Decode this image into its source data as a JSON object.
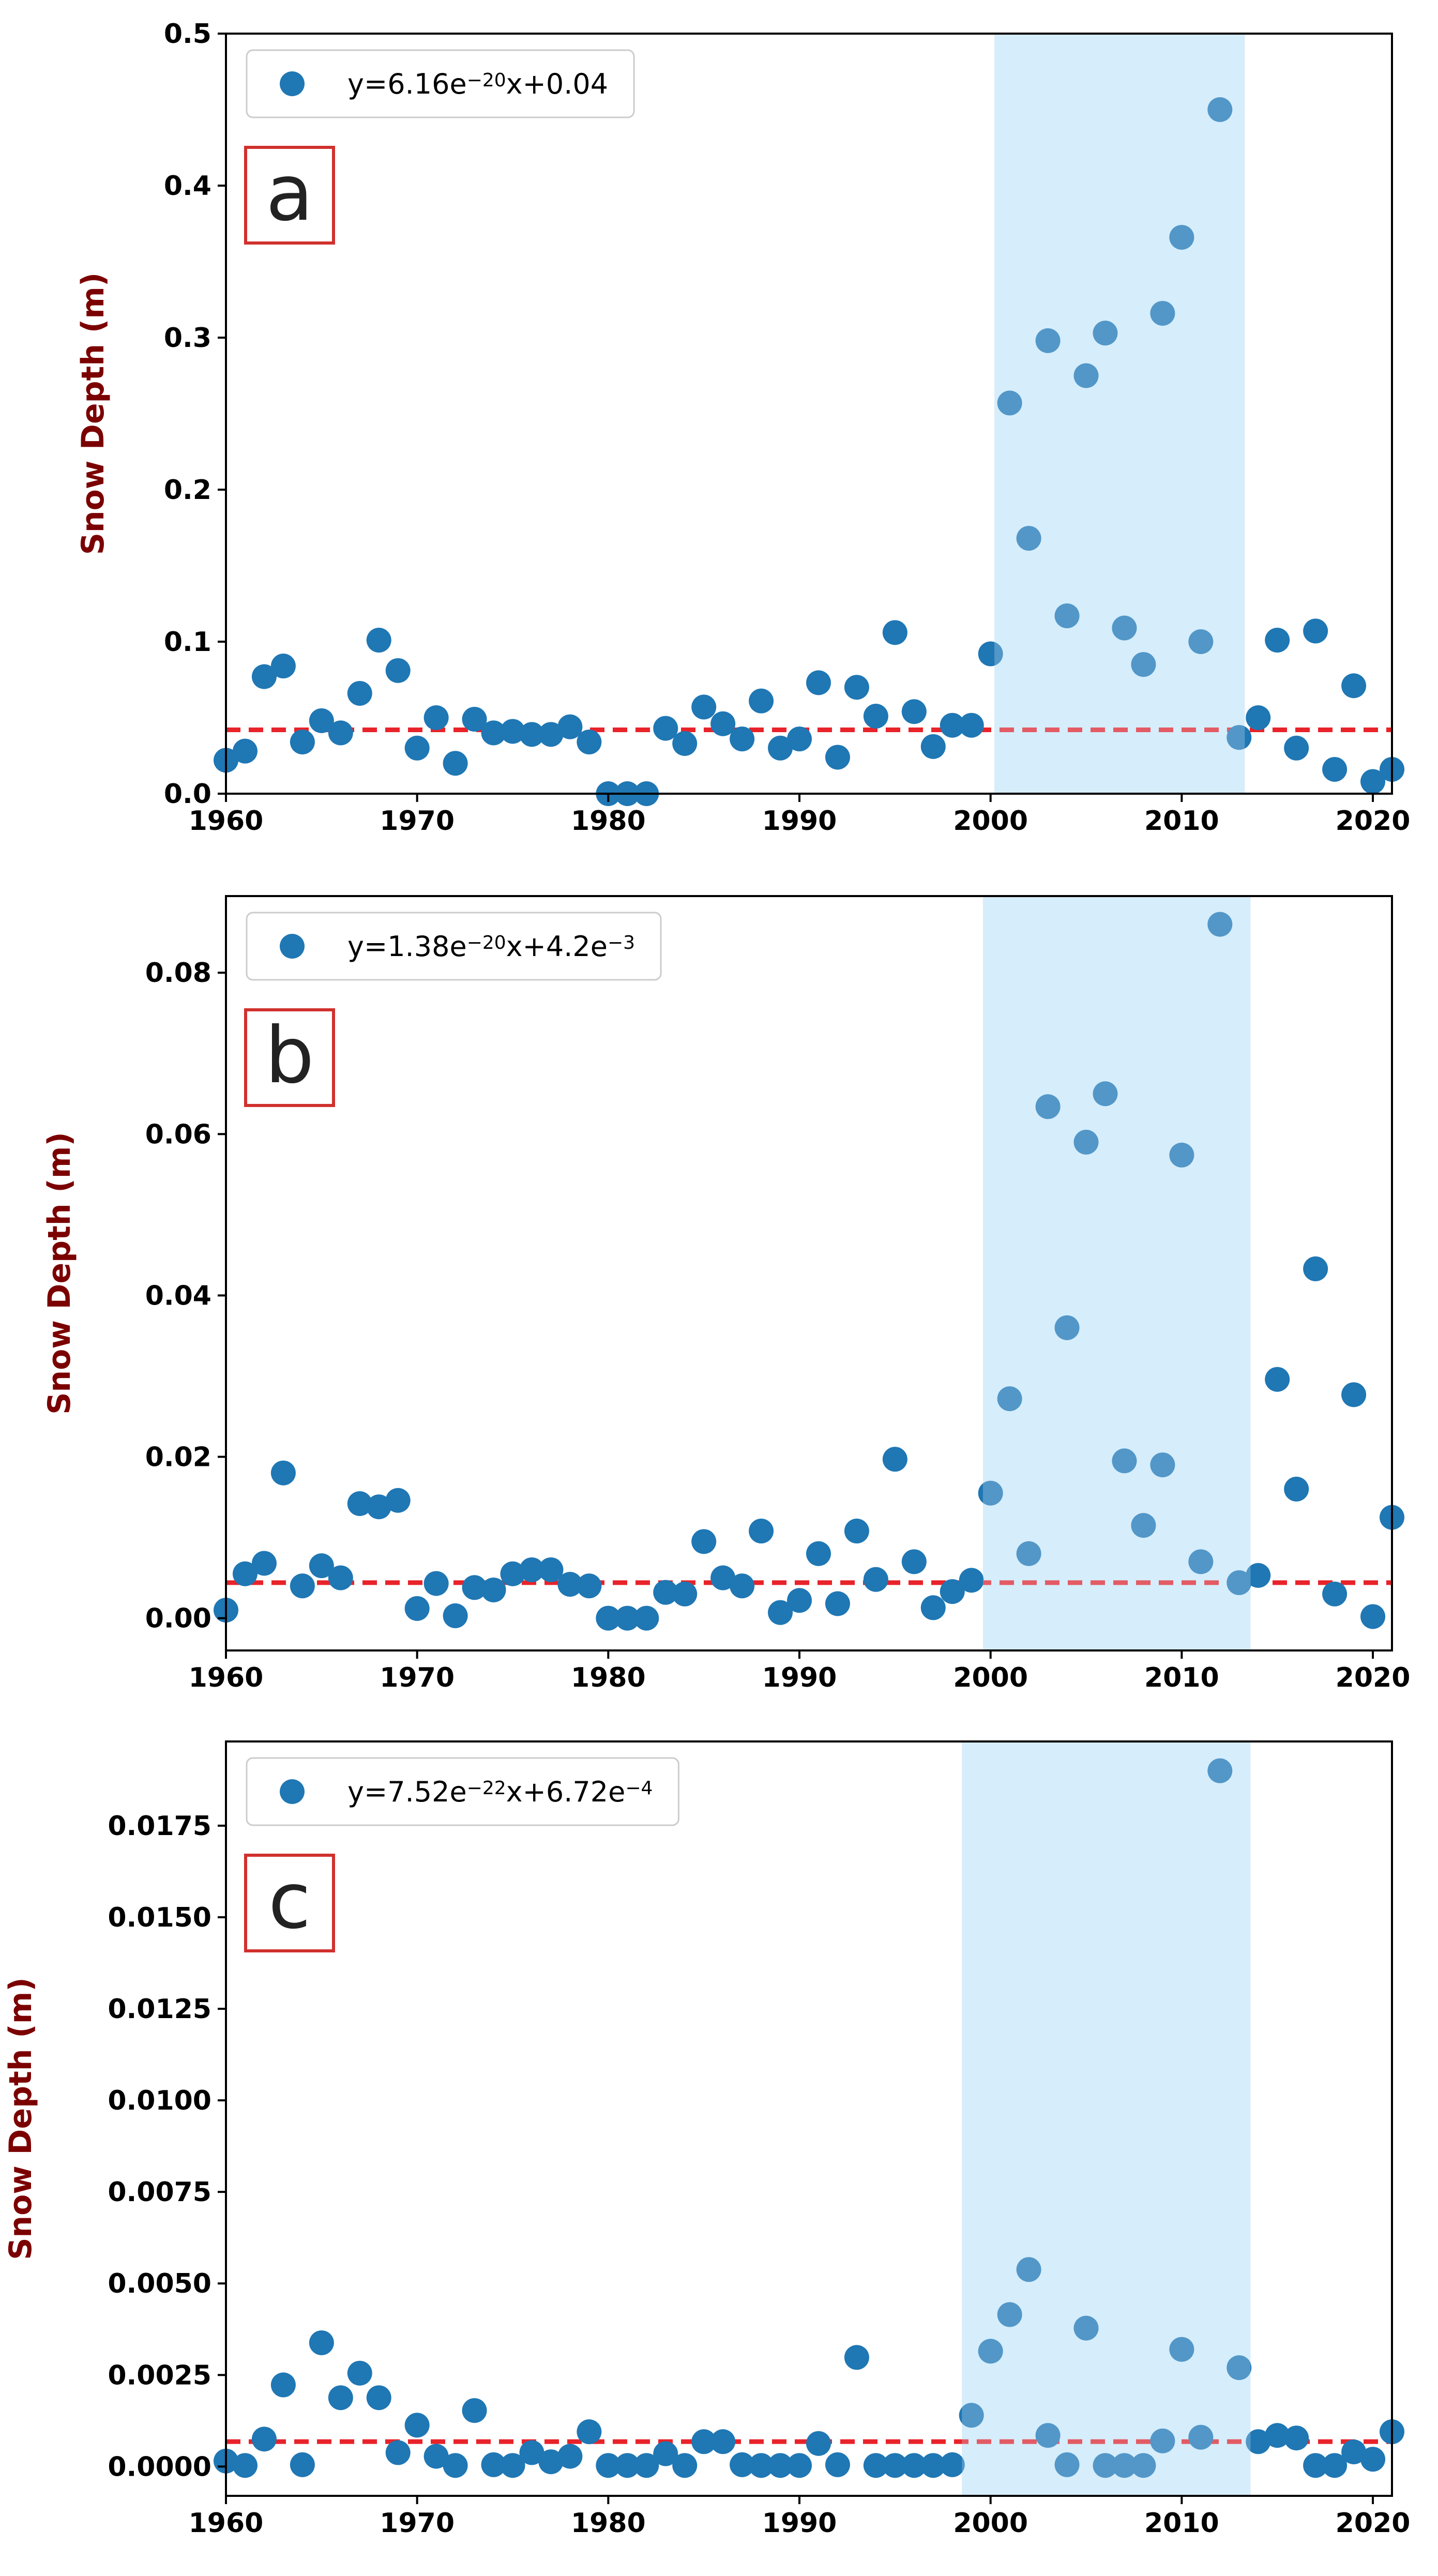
{
  "colors": {
    "marker": "#1f77b4",
    "fitline": "#e8232a",
    "highlight": "#d6edfb",
    "ylabel": "#7b0000",
    "panelbox": "#d0312d"
  },
  "chart_data": [
    {
      "type": "scatter",
      "panel_label": "a",
      "legend": {
        "prefix": "y=6.16e",
        "exp1": "−20",
        "mid": "x+0.04",
        "exp2": "",
        "placement": "top-left"
      },
      "ylabel": "Snow Depth (m)",
      "xlim": [
        1960,
        2021
      ],
      "ylim": [
        0,
        0.5
      ],
      "xticks": [
        1960,
        1970,
        1980,
        1990,
        2000,
        2010,
        2020
      ],
      "xtick_labels": [
        "1960",
        "1970",
        "1980",
        "1990",
        "2000",
        "2010",
        "2020"
      ],
      "yticks": [
        0,
        0.1,
        0.2,
        0.3,
        0.4,
        0.5
      ],
      "ytick_labels": [
        "0.0",
        "0.1",
        "0.2",
        "0.3",
        "0.4",
        "0.5"
      ],
      "highlight_span": [
        2000.2,
        2013.3
      ],
      "fit_line": {
        "slope": 6.16e-20,
        "intercept": 0.042
      },
      "grid": false,
      "x": [
        1960,
        1961,
        1962,
        1963,
        1964,
        1965,
        1966,
        1967,
        1968,
        1969,
        1970,
        1971,
        1972,
        1973,
        1974,
        1975,
        1976,
        1977,
        1978,
        1979,
        1980,
        1981,
        1982,
        1983,
        1984,
        1985,
        1986,
        1987,
        1988,
        1989,
        1990,
        1991,
        1992,
        1993,
        1994,
        1995,
        1996,
        1997,
        1998,
        1999,
        2000,
        2001,
        2002,
        2003,
        2004,
        2005,
        2006,
        2007,
        2008,
        2009,
        2010,
        2011,
        2012,
        2013,
        2014,
        2015,
        2016,
        2017,
        2018,
        2019,
        2020,
        2021
      ],
      "y": [
        0.022,
        0.028,
        0.077,
        0.084,
        0.034,
        0.048,
        0.04,
        0.066,
        0.101,
        0.081,
        0.03,
        0.05,
        0.02,
        0.049,
        0.04,
        0.041,
        0.039,
        0.039,
        0.044,
        0.034,
        0.0,
        0.0,
        0.0,
        0.043,
        0.033,
        0.057,
        0.046,
        0.036,
        0.061,
        0.03,
        0.036,
        0.073,
        0.024,
        0.07,
        0.051,
        0.106,
        0.054,
        0.031,
        0.045,
        0.045,
        0.092,
        0.257,
        0.168,
        0.298,
        0.117,
        0.275,
        0.303,
        0.109,
        0.085,
        0.316,
        0.366,
        0.1,
        0.45,
        0.037,
        0.05,
        0.101,
        0.03,
        0.107,
        0.016,
        0.071,
        0.008,
        0.016
      ]
    },
    {
      "type": "scatter",
      "panel_label": "b",
      "legend": {
        "prefix": "y=1.38e",
        "exp1": "−20",
        "mid": "x+4.2e",
        "exp2": "−3",
        "placement": "top-left"
      },
      "ylabel": "Snow Depth (m)",
      "xlim": [
        1960,
        2021
      ],
      "ylim": [
        -0.004,
        0.0895
      ],
      "xticks": [
        1960,
        1970,
        1980,
        1990,
        2000,
        2010,
        2020
      ],
      "xtick_labels": [
        "1960",
        "1970",
        "1980",
        "1990",
        "2000",
        "2010",
        "2020"
      ],
      "yticks": [
        0,
        0.02,
        0.04,
        0.06,
        0.08
      ],
      "ytick_labels": [
        "0.00",
        "0.02",
        "0.04",
        "0.06",
        "0.08"
      ],
      "highlight_span": [
        1999.6,
        2013.6
      ],
      "fit_line": {
        "slope": 1.38e-20,
        "intercept": 0.0044
      },
      "grid": false,
      "x": [
        1960,
        1961,
        1962,
        1963,
        1964,
        1965,
        1966,
        1967,
        1968,
        1969,
        1970,
        1971,
        1972,
        1973,
        1974,
        1975,
        1976,
        1977,
        1978,
        1979,
        1980,
        1981,
        1982,
        1983,
        1984,
        1985,
        1986,
        1987,
        1988,
        1989,
        1990,
        1991,
        1992,
        1993,
        1994,
        1995,
        1996,
        1997,
        1998,
        1999,
        2000,
        2001,
        2002,
        2003,
        2004,
        2005,
        2006,
        2007,
        2008,
        2009,
        2010,
        2011,
        2012,
        2013,
        2014,
        2015,
        2016,
        2017,
        2018,
        2019,
        2020,
        2021
      ],
      "y": [
        0.001,
        0.0055,
        0.0068,
        0.018,
        0.004,
        0.0065,
        0.005,
        0.0142,
        0.0138,
        0.0146,
        0.0012,
        0.0043,
        0.0003,
        0.0038,
        0.0035,
        0.0055,
        0.006,
        0.006,
        0.0042,
        0.004,
        0.0,
        0.0,
        0.0,
        0.0032,
        0.003,
        0.0095,
        0.005,
        0.004,
        0.0108,
        0.0007,
        0.0022,
        0.008,
        0.0018,
        0.0108,
        0.0048,
        0.0197,
        0.007,
        0.0013,
        0.0033,
        0.0047,
        0.0155,
        0.0272,
        0.008,
        0.0634,
        0.036,
        0.059,
        0.065,
        0.0195,
        0.0115,
        0.019,
        0.0574,
        0.007,
        0.086,
        0.0044,
        0.0053,
        0.0296,
        0.016,
        0.0433,
        0.003,
        0.0277,
        0.0002,
        0.0125
      ]
    },
    {
      "type": "scatter",
      "panel_label": "c",
      "legend": {
        "prefix": "y=7.52e",
        "exp1": "−22",
        "mid": "x+6.72e",
        "exp2": "−4",
        "placement": "top-left"
      },
      "ylabel": "Snow Depth (m)",
      "xlim": [
        1960,
        2021
      ],
      "ylim": [
        -0.0008,
        0.0198
      ],
      "xticks": [
        1960,
        1970,
        1980,
        1990,
        2000,
        2010,
        2020
      ],
      "xtick_labels": [
        "1960",
        "1970",
        "1980",
        "1990",
        "2000",
        "2010",
        "2020"
      ],
      "yticks": [
        0,
        0.0025,
        0.005,
        0.0075,
        0.01,
        0.0125,
        0.015,
        0.0175
      ],
      "ytick_labels": [
        "0.0000",
        "0.0025",
        "0.0050",
        "0.0075",
        "0.0100",
        "0.0125",
        "0.0150",
        "0.0175"
      ],
      "highlight_span": [
        1998.5,
        2013.6
      ],
      "fit_line": {
        "slope": 7.52e-22,
        "intercept": 0.00068
      },
      "grid": false,
      "x": [
        1960,
        1961,
        1962,
        1963,
        1964,
        1965,
        1966,
        1967,
        1968,
        1969,
        1970,
        1971,
        1972,
        1973,
        1974,
        1975,
        1976,
        1977,
        1978,
        1979,
        1980,
        1981,
        1982,
        1983,
        1984,
        1985,
        1986,
        1987,
        1988,
        1989,
        1990,
        1991,
        1992,
        1993,
        1994,
        1995,
        1996,
        1997,
        1998,
        1999,
        2000,
        2001,
        2002,
        2003,
        2004,
        2005,
        2006,
        2007,
        2008,
        2009,
        2010,
        2011,
        2012,
        2013,
        2014,
        2015,
        2016,
        2017,
        2018,
        2019,
        2020,
        2021
      ],
      "y": [
        0.00015,
        3e-05,
        0.00075,
        0.00223,
        5e-05,
        0.00338,
        0.00188,
        0.00255,
        0.00188,
        0.00038,
        0.00113,
        0.00028,
        3e-05,
        0.00153,
        5e-05,
        3e-05,
        0.00038,
        0.00013,
        0.00028,
        0.00095,
        3e-05,
        3e-05,
        3e-05,
        0.00035,
        3e-05,
        0.00068,
        0.00068,
        5e-05,
        3e-05,
        3e-05,
        3e-05,
        0.00063,
        5e-05,
        0.00298,
        3e-05,
        3e-05,
        3e-05,
        3e-05,
        5e-05,
        0.0014,
        0.00315,
        0.00415,
        0.00538,
        0.00085,
        5e-05,
        0.00378,
        3e-05,
        3e-05,
        3e-05,
        0.0007,
        0.0032,
        0.0008,
        0.019,
        0.0027,
        0.00068,
        0.00085,
        0.00078,
        3e-05,
        3e-05,
        0.0004,
        0.0002,
        0.00095
      ]
    }
  ]
}
